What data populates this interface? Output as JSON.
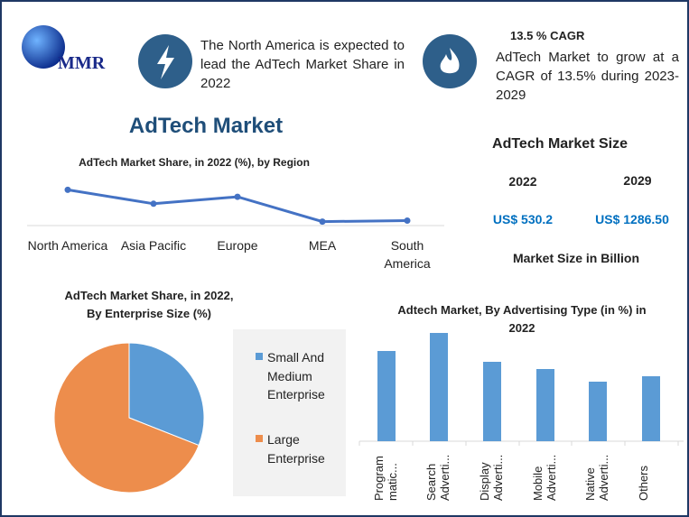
{
  "header": {
    "logo": "MMR",
    "note_1": "The North America is expected to lead the AdTech Market Share in 2022",
    "cagr_title": "13.5 % CAGR",
    "note_2": "AdTech Market to grow at a CAGR of 13.5% during 2023-2029",
    "title": "AdTech Market"
  },
  "market_size": {
    "title": "AdTech Market Size",
    "years": [
      "2022",
      "2029"
    ],
    "amounts": [
      "US$ 530.2",
      "US$ 1286.50"
    ],
    "unit": "Market Size in Billion"
  },
  "chart_data": [
    {
      "type": "line",
      "title": "AdTech Market Share, in 2022 (%), by Region",
      "categories": [
        "North America",
        "Asia Pacific",
        "Europe",
        "MEA",
        "South America"
      ],
      "values": [
        36,
        22,
        29,
        4,
        5
      ],
      "color": "#4472c4",
      "ylim": [
        0,
        50
      ]
    },
    {
      "type": "pie",
      "title": "AdTech Market Share, in 2022, By Enterprise Size (%)",
      "categories": [
        "Small And Medium Enterprise",
        "Large Enterprise"
      ],
      "values": [
        31,
        69
      ],
      "colors": [
        "#5b9bd5",
        "#ed8d4c"
      ]
    },
    {
      "type": "bar",
      "title": "Adtech Market, By Advertising Type (in %) in 2022",
      "categories": [
        "Program matic...",
        "Search Adverti...",
        "Display Adverti...",
        "Mobile Adverti...",
        "Native Adverti...",
        "Others"
      ],
      "values": [
        25,
        30,
        22,
        20,
        16.5,
        18
      ],
      "color": "#5b9bd5",
      "ylim": [
        0,
        35
      ]
    }
  ]
}
